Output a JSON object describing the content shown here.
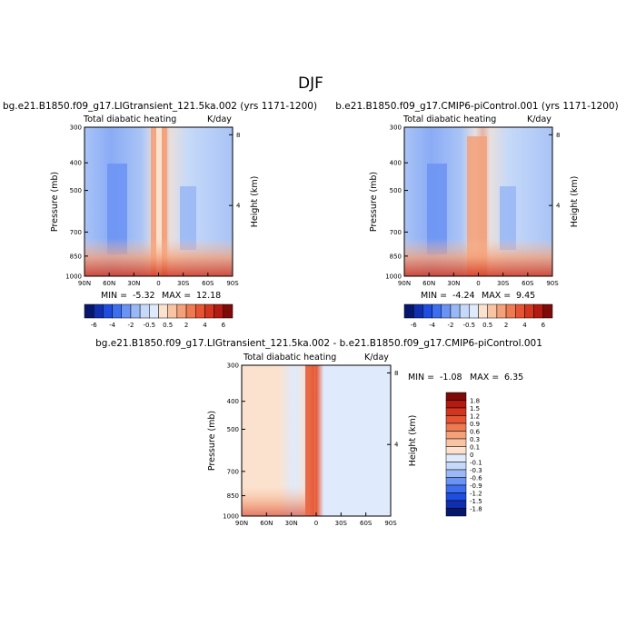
{
  "page_title": "DJF",
  "colors": {
    "neg": [
      "#08176e",
      "#0f2fae",
      "#1f4de0",
      "#3d6ef0",
      "#6b93f3",
      "#9ab8f5",
      "#c6d9f8",
      "#dfeafc"
    ],
    "zero": "#ffffff",
    "pos": [
      "#fbe2cf",
      "#f9c4a4",
      "#f4a078",
      "#ee7a52",
      "#e55533",
      "#d33520",
      "#b31a11",
      "#7e0b08"
    ]
  },
  "chart_data": [
    {
      "type": "heatmap",
      "title": "bg.e21.B1850.f09_g17.LIGtransient_121.5ka.002 (yrs 1171-1200)",
      "subtitle": "Total diabatic heating",
      "units": "K/day",
      "ylabel": "Pressure (mb)",
      "ylabel_right": "Height (km)",
      "x_ticks": [
        "90N",
        "60N",
        "30N",
        "0",
        "30S",
        "60S",
        "90S"
      ],
      "y_ticks": [
        "300",
        "400",
        "500",
        "700",
        "850",
        "1000"
      ],
      "y_right_ticks": [
        "8",
        "4"
      ],
      "stats": {
        "min_label": "MIN =",
        "min": "-5.32",
        "max_label": "MAX =",
        "max": "12.18"
      },
      "colorbar_labels": [
        "-6",
        "-4",
        "-2",
        "-0.5",
        "0.5",
        "2",
        "4",
        "6"
      ]
    },
    {
      "type": "heatmap",
      "title": "b.e21.B1850.f09_g17.CMIP6-piControl.001 (yrs 1171-1200)",
      "subtitle": "Total diabatic heating",
      "units": "K/day",
      "ylabel": "Pressure (mb)",
      "ylabel_right": "Height (km)",
      "x_ticks": [
        "90N",
        "60N",
        "30N",
        "0",
        "30S",
        "60S",
        "90S"
      ],
      "y_ticks": [
        "300",
        "400",
        "500",
        "700",
        "850",
        "1000"
      ],
      "y_right_ticks": [
        "8",
        "4"
      ],
      "stats": {
        "min_label": "MIN =",
        "min": "-4.24",
        "max_label": "MAX =",
        "max": "9.45"
      },
      "colorbar_labels": [
        "-6",
        "-4",
        "-2",
        "-0.5",
        "0.5",
        "2",
        "4",
        "6"
      ]
    },
    {
      "type": "heatmap",
      "title": "bg.e21.B1850.f09_g17.LIGtransient_121.5ka.002 - b.e21.B1850.f09_g17.CMIP6-piControl.001",
      "subtitle": "Total diabatic heating",
      "units": "K/day",
      "ylabel": "Pressure (mb)",
      "ylabel_right": "Height (km)",
      "x_ticks": [
        "90N",
        "60N",
        "30N",
        "0",
        "30S",
        "60S",
        "90S"
      ],
      "y_ticks": [
        "300",
        "400",
        "500",
        "700",
        "850",
        "1000"
      ],
      "y_right_ticks": [
        "8",
        "4"
      ],
      "stats": {
        "min_label": "MIN =",
        "min": "-1.08",
        "max_label": "MAX =",
        "max": "6.35"
      },
      "colorbar_labels": [
        "1.8",
        "1.5",
        "1.2",
        "0.9",
        "0.6",
        "0.3",
        "0.1",
        "0",
        "-0.1",
        "-0.3",
        "-0.6",
        "-0.9",
        "-1.2",
        "-1.5",
        "-1.8"
      ]
    }
  ]
}
